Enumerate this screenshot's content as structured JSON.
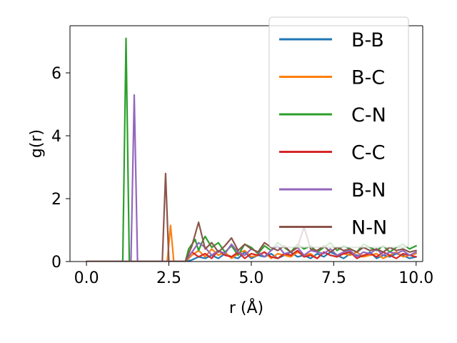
{
  "chart_data": {
    "type": "line",
    "title": "",
    "xlabel": "r (Å)",
    "ylabel": "g(r)",
    "xlim": [
      -0.5,
      10.2
    ],
    "ylim": [
      0,
      7.5
    ],
    "xticks": [
      0.0,
      2.5,
      5.0,
      7.5,
      10.0
    ],
    "xtick_labels": [
      "0.0",
      "2.5",
      "5.0",
      "7.5",
      "10.0"
    ],
    "yticks": [
      0,
      2,
      4,
      6
    ],
    "ytick_labels": [
      "0",
      "2",
      "4",
      "6"
    ],
    "grid": false,
    "legend_position": "top-right",
    "series": [
      {
        "name": "B-B",
        "color": "#1f77b4",
        "x": [
          0,
          3.0,
          3.2,
          3.4,
          3.6,
          3.8,
          4.0,
          4.2,
          4.4,
          4.6,
          4.8,
          5.0,
          5.2,
          5.4,
          5.6,
          5.8,
          6.0,
          6.2,
          6.4,
          6.6,
          6.8,
          7.0,
          7.2,
          7.4,
          7.6,
          7.8,
          8.0,
          8.2,
          8.4,
          8.6,
          8.8,
          9.0,
          9.2,
          9.4,
          9.6,
          9.8,
          10.0
        ],
        "y": [
          0,
          0,
          0.05,
          0.15,
          0.1,
          0.2,
          0.1,
          0.25,
          0.15,
          0.1,
          0.3,
          0.1,
          0.2,
          0.15,
          0.25,
          0.1,
          0.2,
          0.3,
          0.15,
          0.2,
          0.1,
          0.25,
          0.15,
          0.3,
          0.2,
          0.1,
          0.25,
          0.2,
          0.15,
          0.3,
          0.1,
          0.2,
          0.15,
          0.25,
          0.2,
          0.1,
          0.15
        ]
      },
      {
        "name": "B-C",
        "color": "#ff7f0e",
        "x": [
          0,
          2.45,
          2.55,
          2.65,
          2.75,
          3.0,
          3.2,
          3.4,
          3.6,
          3.8,
          4.0,
          4.2,
          4.4,
          4.6,
          4.8,
          5.0,
          5.2,
          5.4,
          5.6,
          5.8,
          6.0,
          6.2,
          6.4,
          6.6,
          6.8,
          7.0,
          7.2,
          7.4,
          7.6,
          7.8,
          8.0,
          8.2,
          8.4,
          8.6,
          8.8,
          9.0,
          9.2,
          9.4,
          9.6,
          9.8,
          10.0
        ],
        "y": [
          0,
          0,
          1.15,
          0,
          0,
          0,
          0.2,
          0.35,
          0.15,
          0.4,
          0.2,
          0.3,
          0.1,
          0.25,
          0.35,
          0.15,
          0.2,
          0.3,
          0.1,
          0.25,
          0.2,
          0.15,
          0.3,
          0.2,
          0.25,
          0.1,
          0.3,
          0.2,
          0.15,
          0.25,
          0.2,
          0.3,
          0.15,
          0.2,
          0.25,
          0.1,
          0.2,
          0.3,
          0.15,
          0.2,
          0.25
        ]
      },
      {
        "name": "C-N",
        "color": "#2ca02c",
        "x": [
          0,
          1.1,
          1.2,
          1.3,
          1.4,
          3.0,
          3.1,
          3.3,
          3.4,
          3.5,
          3.6,
          3.8,
          4.0,
          4.2,
          4.4,
          4.6,
          4.8,
          5.0,
          5.2,
          5.4,
          5.6,
          5.8,
          6.0,
          6.2,
          6.4,
          6.6,
          6.8,
          7.0,
          7.2,
          7.4,
          7.6,
          7.8,
          8.0,
          8.2,
          8.4,
          8.6,
          8.8,
          9.0,
          9.2,
          9.4,
          9.6,
          9.8,
          10.0
        ],
        "y": [
          0,
          0,
          7.1,
          0,
          0,
          0,
          0.4,
          0.7,
          0.35,
          0.6,
          0.8,
          0.45,
          0.6,
          0.3,
          0.5,
          0.2,
          0.55,
          0.45,
          0.25,
          0.5,
          0.35,
          0.6,
          0.45,
          0.3,
          0.55,
          0.4,
          0.5,
          0.3,
          0.45,
          0.6,
          0.35,
          0.5,
          0.4,
          0.3,
          0.55,
          0.45,
          0.35,
          0.5,
          0.3,
          0.45,
          0.55,
          0.4,
          0.5
        ]
      },
      {
        "name": "C-C",
        "color": "#d62728",
        "x": [
          0,
          3.0,
          3.2,
          3.4,
          3.6,
          3.8,
          4.0,
          4.2,
          4.4,
          4.6,
          4.8,
          5.0,
          5.2,
          5.4,
          5.6,
          5.8,
          6.0,
          6.2,
          6.4,
          6.6,
          6.8,
          7.0,
          7.2,
          7.4,
          7.6,
          7.8,
          8.0,
          8.2,
          8.4,
          8.6,
          8.8,
          9.0,
          9.2,
          9.4,
          9.6,
          9.8,
          10.0
        ],
        "y": [
          0,
          0,
          0.3,
          0.15,
          0.25,
          0.1,
          0.35,
          0.2,
          0.15,
          0.3,
          0.1,
          0.25,
          0.2,
          0.3,
          0.15,
          0.1,
          0.25,
          0.2,
          0.35,
          0.15,
          0.2,
          0.1,
          0.3,
          0.2,
          0.15,
          0.25,
          0.3,
          0.1,
          0.2,
          0.25,
          0.15,
          0.3,
          0.2,
          0.1,
          0.25,
          0.2,
          0.15
        ]
      },
      {
        "name": "B-N",
        "color": "#9467bd",
        "x": [
          0,
          1.35,
          1.45,
          1.55,
          1.65,
          3.0,
          3.2,
          3.4,
          3.6,
          3.8,
          4.0,
          4.2,
          4.4,
          4.6,
          4.8,
          5.0,
          5.2,
          5.4,
          5.6,
          5.8,
          6.0,
          6.2,
          6.4,
          6.6,
          6.8,
          7.0,
          7.2,
          7.4,
          7.6,
          7.8,
          8.0,
          8.2,
          8.4,
          8.6,
          8.8,
          9.0,
          9.2,
          9.4,
          9.6,
          9.8,
          10.0
        ],
        "y": [
          0,
          0,
          5.3,
          0,
          0,
          0,
          0.3,
          0.6,
          0.45,
          0.2,
          0.35,
          0.25,
          0.55,
          0.3,
          0.2,
          0.4,
          0.3,
          0.15,
          0.35,
          0.5,
          0.25,
          0.3,
          0.45,
          0.2,
          0.35,
          0.3,
          0.25,
          0.4,
          0.2,
          0.3,
          0.35,
          0.15,
          0.3,
          0.25,
          0.4,
          0.2,
          0.3,
          0.25,
          0.35,
          0.2,
          0.3
        ]
      },
      {
        "name": "N-N",
        "color": "#8c564b",
        "x": [
          0,
          2.3,
          2.4,
          2.5,
          2.6,
          3.0,
          3.2,
          3.4,
          3.6,
          3.8,
          4.0,
          4.2,
          4.4,
          4.6,
          4.8,
          5.0,
          5.2,
          5.4,
          5.6,
          5.8,
          6.0,
          6.2,
          6.4,
          6.6,
          6.8,
          7.0,
          7.2,
          7.4,
          7.6,
          7.8,
          8.0,
          8.2,
          8.4,
          8.6,
          8.8,
          9.0,
          9.2,
          9.4,
          9.6,
          9.8,
          10.0
        ],
        "y": [
          0,
          0,
          2.8,
          0,
          0,
          0,
          0.5,
          1.25,
          0.4,
          0.6,
          0.3,
          0.5,
          0.75,
          0.35,
          0.55,
          0.4,
          0.3,
          0.6,
          0.45,
          0.35,
          0.5,
          0.3,
          0.45,
          1.1,
          0.4,
          0.35,
          0.5,
          0.3,
          0.45,
          0.35,
          0.4,
          0.3,
          0.45,
          0.35,
          0.4,
          0.3,
          0.45,
          0.35,
          0.4,
          0.3,
          0.35
        ]
      }
    ]
  }
}
